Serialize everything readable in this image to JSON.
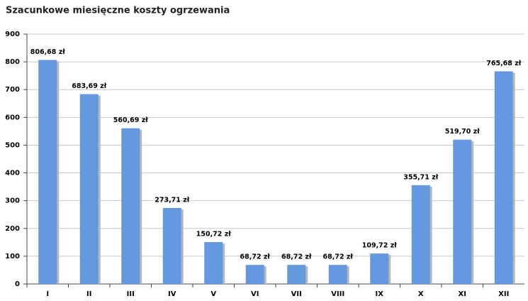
{
  "chart_data": {
    "type": "bar",
    "title": "Szacunkowe miesięczne koszty ogrzewania",
    "categories": [
      "I",
      "II",
      "III",
      "IV",
      "V",
      "VI",
      "VII",
      "VIII",
      "IX",
      "X",
      "XI",
      "XII"
    ],
    "values": [
      806.68,
      683.69,
      560.69,
      273.71,
      150.72,
      68.72,
      68.72,
      68.72,
      109.72,
      355.71,
      519.7,
      765.68
    ],
    "value_labels": [
      "806,68 zł",
      "683,69 zł",
      "560,69 zł",
      "273,71 zł",
      "150,72 zł",
      "68,72 zł",
      "68,72 zł",
      "68,72 zł",
      "109,72 zł",
      "355,71 zł",
      "519,70 zł",
      "765,68 zł"
    ],
    "color": "#6499e0",
    "ylim": [
      0,
      900
    ],
    "yticks": [
      0,
      100,
      200,
      300,
      400,
      500,
      600,
      700,
      800,
      900
    ],
    "grid": true
  }
}
